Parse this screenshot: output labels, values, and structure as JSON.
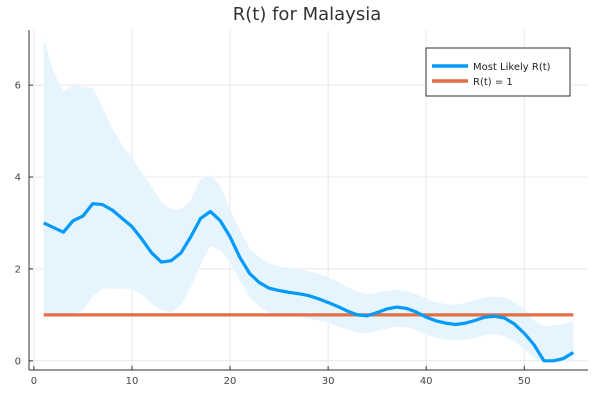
{
  "chart_data": {
    "type": "line",
    "title": "R(t) for Malaysia",
    "xlabel": "",
    "ylabel": "",
    "xlim": [
      -0.5,
      56.5
    ],
    "ylim": [
      -0.2,
      7.2
    ],
    "xticks": [
      0,
      10,
      20,
      30,
      40,
      50
    ],
    "yticks": [
      0,
      2,
      4,
      6
    ],
    "grid": true,
    "legend_position": "top-right",
    "colors": {
      "likely": "#009af9",
      "band": "#e6f4fe",
      "one": "#e26f46"
    },
    "series": [
      {
        "name": "Most Likely R(t)",
        "x": [
          1,
          2,
          3,
          4,
          5,
          6,
          7,
          8,
          9,
          10,
          11,
          12,
          13,
          14,
          15,
          16,
          17,
          18,
          19,
          20,
          21,
          22,
          23,
          24,
          25,
          26,
          27,
          28,
          29,
          30,
          31,
          32,
          33,
          34,
          35,
          36,
          37,
          38,
          39,
          40,
          41,
          42,
          43,
          44,
          45,
          46,
          47,
          48,
          49,
          50,
          51,
          52,
          53,
          54,
          55
        ],
        "y": [
          3.0,
          2.9,
          2.8,
          3.05,
          3.15,
          3.42,
          3.4,
          3.28,
          3.1,
          2.92,
          2.65,
          2.35,
          2.15,
          2.18,
          2.35,
          2.7,
          3.1,
          3.25,
          3.05,
          2.7,
          2.25,
          1.9,
          1.7,
          1.58,
          1.53,
          1.49,
          1.46,
          1.42,
          1.35,
          1.27,
          1.18,
          1.08,
          1.0,
          0.98,
          1.05,
          1.13,
          1.17,
          1.14,
          1.06,
          0.95,
          0.87,
          0.82,
          0.79,
          0.82,
          0.88,
          0.95,
          0.97,
          0.93,
          0.8,
          0.6,
          0.35,
          0.0,
          0.0,
          0.05,
          0.18
        ],
        "lower": [
          1.0,
          1.0,
          0.95,
          1.0,
          1.1,
          1.4,
          1.58,
          1.57,
          1.57,
          1.55,
          1.45,
          1.25,
          1.1,
          1.05,
          1.2,
          1.6,
          2.1,
          2.5,
          2.4,
          2.15,
          1.75,
          1.38,
          1.18,
          1.05,
          1.0,
          0.98,
          0.95,
          0.92,
          0.88,
          0.83,
          0.75,
          0.68,
          0.62,
          0.6,
          0.65,
          0.7,
          0.74,
          0.73,
          0.67,
          0.58,
          0.5,
          0.46,
          0.44,
          0.46,
          0.5,
          0.56,
          0.58,
          0.54,
          0.42,
          0.25,
          0.05,
          0.0,
          0.0,
          0.0,
          0.0
        ],
        "upper": [
          7.0,
          6.3,
          5.85,
          6.0,
          5.95,
          5.95,
          5.5,
          5.05,
          4.7,
          4.4,
          4.1,
          3.8,
          3.45,
          3.3,
          3.3,
          3.5,
          3.95,
          4.05,
          3.8,
          3.3,
          2.85,
          2.45,
          2.25,
          2.12,
          2.05,
          2.02,
          2.0,
          1.95,
          1.9,
          1.82,
          1.72,
          1.6,
          1.5,
          1.45,
          1.48,
          1.52,
          1.55,
          1.52,
          1.45,
          1.35,
          1.28,
          1.23,
          1.22,
          1.26,
          1.33,
          1.38,
          1.4,
          1.38,
          1.28,
          1.12,
          0.88,
          0.75,
          0.78,
          0.8,
          0.85
        ]
      },
      {
        "name": "R(t) = 1",
        "x": [
          1,
          55
        ],
        "y": [
          1,
          1
        ]
      }
    ]
  }
}
